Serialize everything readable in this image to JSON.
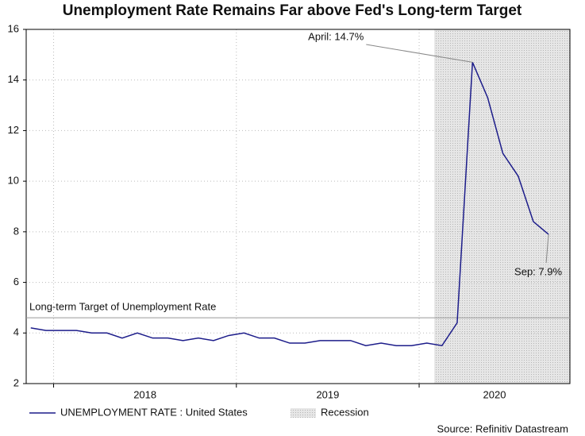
{
  "chart_data": {
    "type": "line",
    "title": "Unemployment Rate Remains Far above Fed's Long-term Target",
    "x": [
      2017.875,
      2017.958,
      2018.042,
      2018.125,
      2018.208,
      2018.292,
      2018.375,
      2018.458,
      2018.542,
      2018.625,
      2018.708,
      2018.792,
      2018.875,
      2018.958,
      2019.042,
      2019.125,
      2019.208,
      2019.292,
      2019.375,
      2019.458,
      2019.542,
      2019.625,
      2019.708,
      2019.792,
      2019.875,
      2019.958,
      2020.042,
      2020.125,
      2020.208,
      2020.292,
      2020.375,
      2020.458,
      2020.542,
      2020.625,
      2020.708
    ],
    "series": [
      {
        "name": "UNEMPLOYMENT RATE : United States",
        "color": "#1c1c8a",
        "values": [
          4.2,
          4.1,
          4.1,
          4.1,
          4.0,
          4.0,
          3.8,
          4.0,
          3.8,
          3.8,
          3.7,
          3.8,
          3.7,
          3.9,
          4.0,
          3.8,
          3.8,
          3.6,
          3.6,
          3.7,
          3.7,
          3.7,
          3.5,
          3.6,
          3.5,
          3.5,
          3.6,
          3.5,
          4.4,
          14.7,
          13.3,
          11.1,
          10.2,
          8.4,
          7.9
        ]
      }
    ],
    "xlim": [
      2017.85,
      2020.825
    ],
    "xticks": [
      2018,
      2019,
      2020
    ],
    "ylim": [
      2,
      16
    ],
    "yticks": [
      2,
      4,
      6,
      8,
      10,
      12,
      14,
      16
    ],
    "grid": true,
    "recession": {
      "name": "Recession",
      "start": 2020.083,
      "end": 2020.825,
      "color": "#d9d9d9"
    },
    "target": {
      "label": "Long-term Target of Unemployment Rate",
      "value": 4.6,
      "color": "#999999"
    },
    "annotations": [
      {
        "text": "April: 14.7%",
        "index": 29
      },
      {
        "text": "Sep: 7.9%",
        "index": 34
      }
    ],
    "source": "Source: Refinitiv Datastream"
  }
}
